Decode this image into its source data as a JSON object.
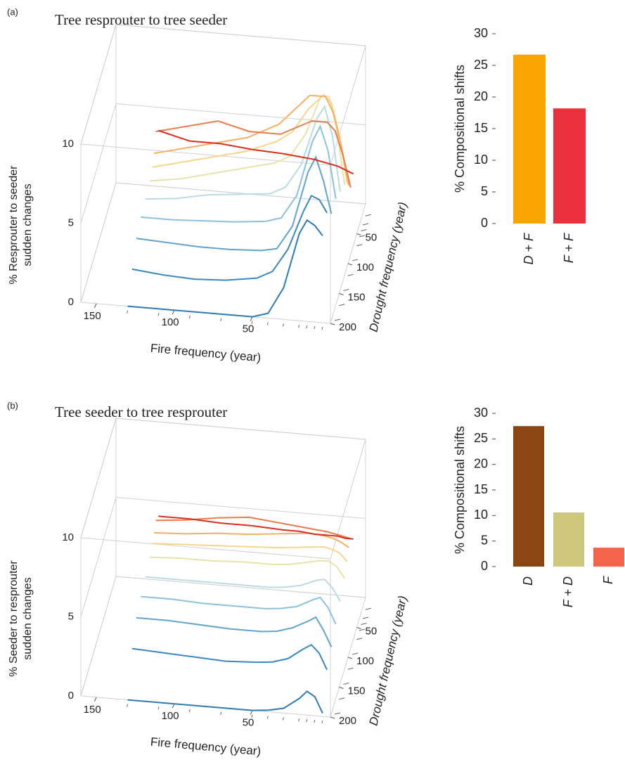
{
  "chart_data": [
    {
      "type": "line3d",
      "panel": "(a)",
      "title": "Tree resprouter to tree seeder",
      "xlabel": "Fire frequency (year)",
      "ylabel": "Drought frequency (year)",
      "zlabel": [
        "% Resprouter to seeder",
        "sudden changes"
      ],
      "x": [
        130,
        110,
        90,
        70,
        50,
        40,
        30,
        20,
        15,
        10,
        5
      ],
      "xlim": [
        160,
        0
      ],
      "xticks": [
        150,
        100,
        50
      ],
      "ylim": [
        200,
        0
      ],
      "yticks": [
        50,
        100,
        150,
        200
      ],
      "zlim": [
        0,
        10
      ],
      "zticks": [
        0,
        5,
        10
      ],
      "series": [
        {
          "y": 200,
          "color": "#2c7bb6",
          "values": [
            0,
            0,
            0,
            0,
            0,
            0.3,
            2,
            5.5,
            6.4,
            6.1,
            5.5
          ]
        },
        {
          "y": 175,
          "color": "#3a88c0",
          "values": [
            1.4,
            1.2,
            1.1,
            1.2,
            1.5,
            2,
            3.5,
            6,
            7,
            6.8,
            6
          ]
        },
        {
          "y": 150,
          "color": "#5fa3cf",
          "values": [
            2.4,
            2.3,
            2.2,
            2.2,
            2.3,
            2.5,
            4,
            7.5,
            8.5,
            7,
            5
          ]
        },
        {
          "y": 125,
          "color": "#8cc0dc",
          "values": [
            2.8,
            2.8,
            2.9,
            3,
            3.2,
            3.5,
            5,
            8.5,
            9.5,
            8,
            5
          ]
        },
        {
          "y": 100,
          "color": "#b9dbe4",
          "values": [
            3,
            3.2,
            3.6,
            3.8,
            4,
            4.5,
            6,
            9,
            9.8,
            8,
            4.5
          ]
        },
        {
          "y": 75,
          "color": "#e8e3a8",
          "values": [
            3.2,
            3.5,
            4,
            4.5,
            5,
            5.5,
            7,
            9.5,
            9.5,
            7.5,
            4
          ]
        },
        {
          "y": 60,
          "color": "#f7d58a",
          "values": [
            3.5,
            4,
            4.5,
            5,
            5.8,
            6.5,
            8,
            9,
            8.5,
            6.5,
            3.5
          ]
        },
        {
          "y": 50,
          "color": "#f4b065",
          "values": [
            4,
            4.5,
            5,
            5.5,
            6.5,
            7.5,
            8.5,
            8.5,
            7.5,
            5.5,
            3
          ]
        },
        {
          "y": 40,
          "color": "#e77d4a",
          "values": [
            5,
            5.5,
            6,
            5.5,
            5.5,
            6,
            6.5,
            6.5,
            6,
            4.5,
            2.5
          ]
        },
        {
          "y": 25,
          "color": "#d7301f",
          "values": [
            4.5,
            4,
            4,
            3.8,
            3.7,
            3.6,
            3.5,
            3.3,
            3.2,
            3,
            2.8
          ]
        }
      ]
    },
    {
      "type": "bar",
      "ylabel": "% Compositional shifts",
      "categories": [
        "D + F",
        "F + F"
      ],
      "values": [
        26.7,
        18.2
      ],
      "colors": [
        "#f9a602",
        "#e8313a"
      ],
      "ylim": [
        0,
        30
      ],
      "yticks": [
        0,
        5,
        10,
        15,
        20,
        25,
        30
      ]
    },
    {
      "type": "line3d",
      "panel": "(b)",
      "title": "Tree seeder to tree resprouter",
      "xlabel": "Fire frequency (year)",
      "ylabel": "Drought frequency (year)",
      "zlabel": [
        "% Seeder to resprouter",
        "sudden changes"
      ],
      "x": [
        130,
        110,
        90,
        70,
        50,
        40,
        30,
        20,
        15,
        10,
        5
      ],
      "xlim": [
        160,
        0
      ],
      "xticks": [
        150,
        100,
        50
      ],
      "ylim": [
        200,
        0
      ],
      "yticks": [
        50,
        100,
        150,
        200
      ],
      "zlim": [
        0,
        10
      ],
      "zticks": [
        0,
        5,
        10
      ],
      "series": [
        {
          "y": 200,
          "color": "#2c7bb6",
          "values": [
            0,
            0,
            0,
            0,
            0,
            0.1,
            0.3,
            1,
            1.5,
            1.2,
            0.2
          ]
        },
        {
          "y": 175,
          "color": "#3a88c0",
          "values": [
            2.3,
            2.2,
            2.1,
            2,
            2.1,
            2.2,
            2.5,
            3.2,
            3.5,
            3,
            2
          ]
        },
        {
          "y": 150,
          "color": "#5fa3cf",
          "values": [
            3.3,
            3.3,
            3.2,
            3.1,
            3.1,
            3.2,
            3.5,
            4,
            4.3,
            3.5,
            2.5
          ]
        },
        {
          "y": 125,
          "color": "#8cc0dc",
          "values": [
            3.7,
            3.7,
            3.6,
            3.6,
            3.6,
            3.7,
            3.9,
            4.4,
            4.6,
            4,
            3
          ]
        },
        {
          "y": 100,
          "color": "#b9dbe4",
          "values": [
            4,
            4,
            4,
            4,
            4,
            4.1,
            4.3,
            4.7,
            4.8,
            4.3,
            3.5
          ]
        },
        {
          "y": 75,
          "color": "#e8e3a8",
          "values": [
            4.3,
            4.4,
            4.4,
            4.5,
            4.5,
            4.6,
            4.8,
            5,
            5,
            4.7,
            4
          ]
        },
        {
          "y": 60,
          "color": "#f7d58a",
          "values": [
            4.6,
            4.7,
            4.8,
            4.9,
            5,
            5.1,
            5.2,
            5.3,
            5.2,
            5,
            4.5
          ]
        },
        {
          "y": 50,
          "color": "#f4b065",
          "values": [
            4.9,
            5,
            5.2,
            5.3,
            5.5,
            5.6,
            5.7,
            5.6,
            5.5,
            5.3,
            5
          ]
        },
        {
          "y": 40,
          "color": "#e77d4a",
          "values": [
            5.3,
            5.5,
            5.8,
            6,
            5.8,
            5.7,
            5.6,
            5.5,
            5.4,
            5.3,
            5.2
          ]
        },
        {
          "y": 25,
          "color": "#d7301f",
          "values": [
            5,
            5,
            4.9,
            4.9,
            4.8,
            4.8,
            4.7,
            4.7,
            4.7,
            4.6,
            4.6
          ]
        }
      ]
    },
    {
      "type": "bar",
      "ylabel": "% Compositional shifts",
      "categories": [
        "D",
        "F + D",
        "F"
      ],
      "values": [
        27.5,
        10.6,
        3.7
      ],
      "colors": [
        "#8b4513",
        "#cfc77c",
        "#f4644a"
      ],
      "ylim": [
        0,
        30
      ],
      "yticks": [
        0,
        5,
        10,
        15,
        20,
        25,
        30
      ]
    }
  ]
}
